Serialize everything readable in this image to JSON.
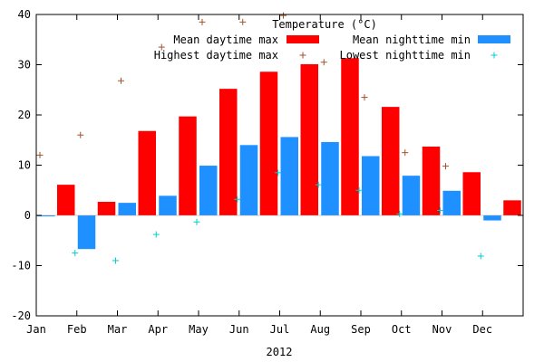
{
  "chart_data": {
    "type": "bar",
    "title": "Temperature (°C)",
    "xlabel": "2012",
    "ylabel": "",
    "ylim": [
      -20,
      40
    ],
    "yticks": [
      -20,
      -10,
      0,
      10,
      20,
      30,
      40
    ],
    "categories": [
      "Jan",
      "Feb",
      "Mar",
      "Apr",
      "May",
      "Jun",
      "Jul",
      "Aug",
      "Sep",
      "Oct",
      "Nov",
      "Dec"
    ],
    "grid": false,
    "legend_position": "top-right",
    "series": [
      {
        "name": "Mean daytime max",
        "kind": "bar",
        "color": "#ff0000",
        "values": [
          6.1,
          2.7,
          16.8,
          19.7,
          25.2,
          28.6,
          30.1,
          31.3,
          21.6,
          13.7,
          8.6,
          3.0
        ]
      },
      {
        "name": "Mean nighttime min",
        "kind": "bar",
        "color": "#1e90ff",
        "values": [
          -0.2,
          -6.7,
          2.5,
          3.9,
          9.9,
          14.0,
          15.6,
          14.6,
          11.8,
          7.9,
          4.9,
          -1.0
        ]
      },
      {
        "name": "Highest daytime max",
        "kind": "point",
        "marker": "+",
        "color": "#a0522d",
        "values": [
          12.0,
          16.0,
          26.8,
          33.5,
          38.5,
          38.5,
          39.8,
          30.5,
          23.5,
          12.5,
          9.8,
          null
        ]
      },
      {
        "name": "Lowest nighttime min",
        "kind": "point",
        "marker": "+",
        "color": "#00ced1",
        "values": [
          -7.5,
          -9.0,
          -3.8,
          -1.3,
          3.2,
          8.5,
          6.1,
          5.0,
          0.3,
          1.0,
          -8.1,
          null
        ]
      }
    ]
  }
}
